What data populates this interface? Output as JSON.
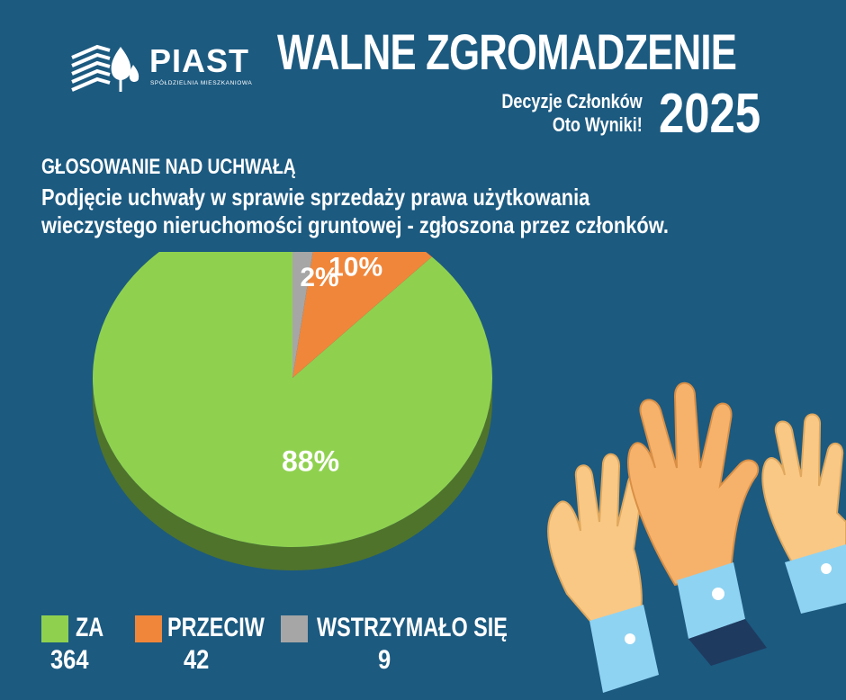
{
  "brand": {
    "name": "PIAST",
    "subtitle": "SPÓŁDZIELNIA MIESZKANIOWA"
  },
  "header": {
    "title": "WALNE ZGROMADZENIE",
    "subtitle_line1": "Decyzje Członków",
    "subtitle_line2": "Oto Wyniki!",
    "year": "2025"
  },
  "section_label": "GŁOSOWANIE NAD UCHWAŁĄ",
  "question": {
    "line1": "Podjęcie uchwały w sprawie sprzedaży prawa użytkowania",
    "line2": "wieczystego nieruchomości gruntowej - zgłoszona przez członków."
  },
  "chart_data": {
    "type": "pie",
    "slices": [
      {
        "label": "ZA",
        "value": 364,
        "percent_label": "88%",
        "color": "#8fd14f"
      },
      {
        "label": "PRZECIW",
        "value": 42,
        "percent_label": "10%",
        "color": "#f0863a"
      },
      {
        "label": "WSTRZYMAŁO SIĘ",
        "value": 9,
        "percent_label": "2%",
        "color": "#a6a6a6"
      }
    ]
  },
  "legend": {
    "items": [
      {
        "label": "ZA",
        "count": "364",
        "color": "#8fd14f"
      },
      {
        "label": "PRZECIW",
        "count": "42",
        "color": "#f0863a"
      },
      {
        "label": "WSTRZYMAŁO SIĘ",
        "count": "9",
        "color": "#a6a6a6"
      }
    ]
  },
  "colors": {
    "background": "#1c5a80",
    "text": "#ffffff"
  }
}
